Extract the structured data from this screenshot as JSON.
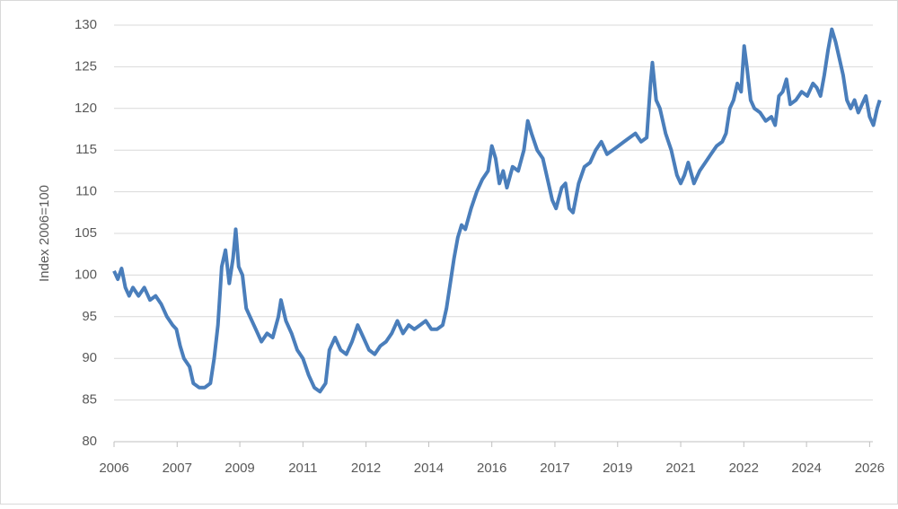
{
  "chart_data": {
    "type": "line",
    "y_label": "Index 2006=100",
    "xlim": [
      2006,
      2026.3
    ],
    "xticks": [
      {
        "value": 2006,
        "label": "2006"
      },
      {
        "value": 2007.67,
        "label": "2007"
      },
      {
        "value": 2009.33,
        "label": "2009"
      },
      {
        "value": 2011,
        "label": "2011"
      },
      {
        "value": 2012.67,
        "label": "2012"
      },
      {
        "value": 2014.33,
        "label": "2014"
      },
      {
        "value": 2016,
        "label": "2016"
      },
      {
        "value": 2017.67,
        "label": "2017"
      },
      {
        "value": 2019.33,
        "label": "2019"
      },
      {
        "value": 2021,
        "label": "2021"
      },
      {
        "value": 2022.67,
        "label": "2022"
      },
      {
        "value": 2024.33,
        "label": "2024"
      },
      {
        "value": 2026,
        "label": "2026"
      }
    ],
    "ylim": [
      80,
      130
    ],
    "yticks": [
      80,
      85,
      90,
      95,
      100,
      105,
      110,
      115,
      120,
      125,
      130
    ],
    "grid": true,
    "color": "#4a7ebb",
    "x": [
      2006.0,
      2006.1,
      2006.2,
      2006.3,
      2006.4,
      2006.5,
      2006.65,
      2006.8,
      2006.95,
      2007.1,
      2007.25,
      2007.4,
      2007.55,
      2007.65,
      2007.75,
      2007.85,
      2008.0,
      2008.1,
      2008.25,
      2008.4,
      2008.55,
      2008.65,
      2008.75,
      2008.85,
      2008.95,
      2009.05,
      2009.15,
      2009.22,
      2009.3,
      2009.4,
      2009.5,
      2009.6,
      2009.75,
      2009.9,
      2010.05,
      2010.2,
      2010.35,
      2010.42,
      2010.55,
      2010.7,
      2010.85,
      2011.0,
      2011.15,
      2011.3,
      2011.45,
      2011.6,
      2011.7,
      2011.85,
      2012.0,
      2012.15,
      2012.3,
      2012.45,
      2012.6,
      2012.75,
      2012.9,
      2013.05,
      2013.2,
      2013.35,
      2013.5,
      2013.65,
      2013.8,
      2013.95,
      2014.1,
      2014.25,
      2014.4,
      2014.55,
      2014.7,
      2014.8,
      2014.9,
      2015.0,
      2015.1,
      2015.2,
      2015.3,
      2015.45,
      2015.6,
      2015.75,
      2015.9,
      2016.0,
      2016.1,
      2016.2,
      2016.3,
      2016.4,
      2016.55,
      2016.7,
      2016.85,
      2016.95,
      2017.05,
      2017.2,
      2017.35,
      2017.5,
      2017.6,
      2017.7,
      2017.85,
      2017.95,
      2018.05,
      2018.15,
      2018.3,
      2018.45,
      2018.6,
      2018.75,
      2018.9,
      2019.05,
      2019.2,
      2019.35,
      2019.5,
      2019.65,
      2019.8,
      2019.95,
      2020.1,
      2020.2,
      2020.25,
      2020.35,
      2020.45,
      2020.6,
      2020.75,
      2020.9,
      2021.0,
      2021.1,
      2021.2,
      2021.35,
      2021.5,
      2021.65,
      2021.8,
      2021.95,
      2022.1,
      2022.2,
      2022.3,
      2022.4,
      2022.5,
      2022.6,
      2022.68,
      2022.75,
      2022.85,
      2022.95,
      2023.1,
      2023.25,
      2023.4,
      2023.5,
      2023.6,
      2023.7,
      2023.8,
      2023.9,
      2024.05,
      2024.2,
      2024.35,
      2024.5,
      2024.6,
      2024.7,
      2024.8,
      2024.9,
      2025.0,
      2025.1,
      2025.2,
      2025.3,
      2025.4,
      2025.5,
      2025.6,
      2025.7,
      2025.8,
      2025.9,
      2026.0,
      2026.1,
      2026.2,
      2026.27
    ],
    "values": [
      100.5,
      99.5,
      100.8,
      98.5,
      97.5,
      98.5,
      97.5,
      98.5,
      97,
      97.5,
      96.5,
      95,
      94,
      93.5,
      91.5,
      90,
      89,
      87,
      86.5,
      86.5,
      87,
      90,
      94,
      101,
      103,
      99,
      102,
      105.5,
      101,
      100,
      96,
      95,
      93.5,
      92,
      93,
      92.5,
      95,
      97,
      94.5,
      93,
      91,
      90,
      88,
      86.5,
      86,
      87,
      91,
      92.5,
      91,
      90.5,
      92,
      94,
      92.5,
      91,
      90.5,
      91.5,
      92,
      93,
      94.5,
      93,
      94,
      93.5,
      94,
      94.5,
      93.5,
      93.5,
      94,
      96,
      99,
      102,
      104.5,
      106,
      105.5,
      108,
      110,
      111.5,
      112.5,
      115.5,
      114,
      111,
      112.5,
      110.5,
      113,
      112.5,
      115,
      118.5,
      117,
      115,
      114,
      111,
      109,
      108,
      110.5,
      111,
      108,
      107.5,
      111,
      113,
      113.5,
      115,
      116,
      114.5,
      115,
      115.5,
      116,
      116.5,
      117,
      116,
      116.5,
      123,
      125.5,
      121,
      120,
      117,
      115,
      112,
      111,
      112,
      113.5,
      111,
      112.5,
      113.5,
      114.5,
      115.5,
      116,
      117,
      120,
      121,
      123,
      122,
      127.5,
      125,
      121,
      120,
      119.5,
      118.5,
      119,
      118,
      121.5,
      122,
      123.5,
      120.5,
      121,
      122,
      121.5,
      123,
      122.5,
      121.5,
      124,
      127,
      129.5,
      128,
      126,
      124,
      121,
      120,
      121,
      119.5,
      120.5,
      121.5,
      119,
      118,
      120,
      121
    ]
  }
}
